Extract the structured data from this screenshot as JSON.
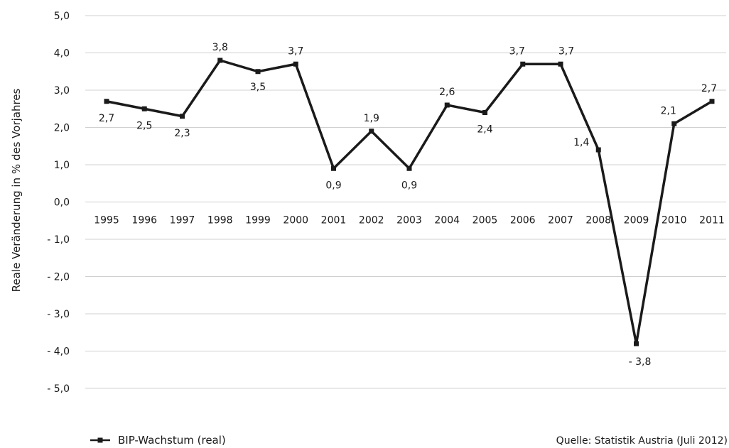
{
  "chart_data": {
    "type": "line",
    "title": "",
    "xlabel": "",
    "ylabel": "Reale Veränderung in % des Vorjahres",
    "ylim": [
      -5,
      5
    ],
    "yticks": [
      5,
      4,
      3,
      2,
      1,
      0,
      -1,
      -2,
      -3,
      -4,
      -5
    ],
    "ytick_labels": [
      "5,0",
      "4,0",
      "3,0",
      "2,0",
      "1,0",
      "0,0",
      "- 1,0",
      "- 2,0",
      "- 3,0",
      "- 4,0",
      "- 5,0"
    ],
    "grid": true,
    "x": [
      "1995",
      "1996",
      "1997",
      "1998",
      "1999",
      "2000",
      "2001",
      "2002",
      "2003",
      "2004",
      "2005",
      "2006",
      "2007",
      "2008",
      "2009",
      "2010",
      "2011"
    ],
    "series": [
      {
        "name": "BIP-Wachstum (real)",
        "values": [
          2.7,
          2.5,
          2.3,
          3.8,
          3.5,
          3.7,
          0.9,
          1.9,
          0.9,
          2.6,
          2.4,
          3.7,
          3.7,
          1.4,
          -3.8,
          2.1,
          2.7
        ],
        "labels": [
          "2,7",
          "2,5",
          "2,3",
          "3,8",
          "3,5",
          "3,7",
          "0,9",
          "1,9",
          "0,9",
          "2,6",
          "2,4",
          "3,7",
          "3,7",
          "1,4",
          "- 3,8",
          "2,1",
          "2,7"
        ],
        "color": "#1a1a1a"
      }
    ],
    "legend_position": "bottom-left",
    "source": "Quelle: Statistik Austria (Juli 2012)"
  }
}
